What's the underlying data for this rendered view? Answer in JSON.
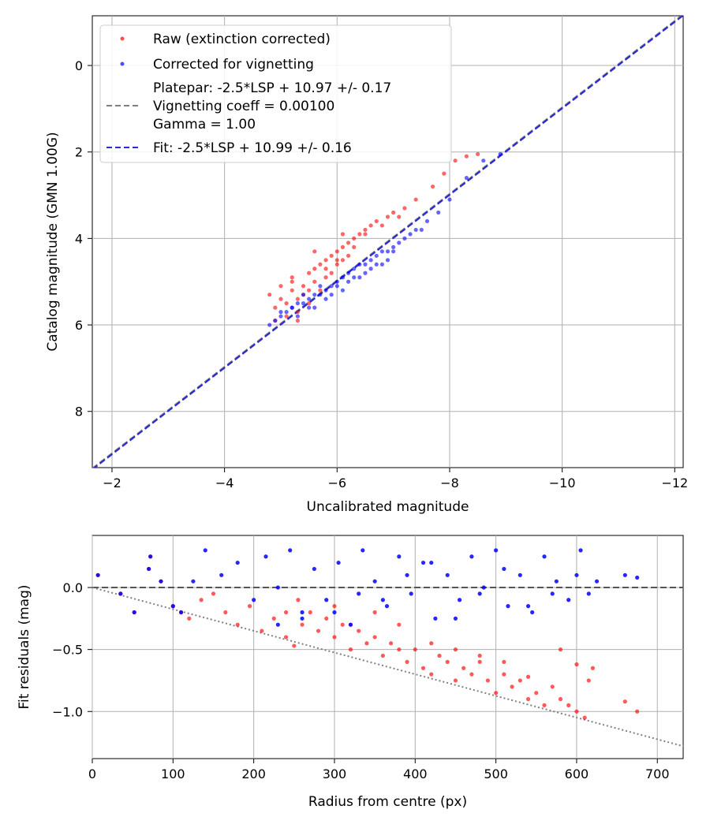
{
  "chart_data": [
    {
      "type": "scatter",
      "xlabel": "Uncalibrated magnitude",
      "ylabel": "Catalog magnitude (GMN 1.00G)",
      "xlim": [
        -1.65,
        -12.15
      ],
      "ylim": [
        9.3,
        -1.15
      ],
      "x_inverted": true,
      "y_inverted": true,
      "xticks": [
        -2,
        -4,
        -6,
        -8,
        -10,
        -12
      ],
      "xtick_labels": [
        "−2",
        "−4",
        "−6",
        "−8",
        "−10",
        "−12"
      ],
      "yticks": [
        0,
        2,
        4,
        6,
        8
      ],
      "ytick_labels": [
        "0",
        "2",
        "4",
        "6",
        "8"
      ],
      "grid": true,
      "legend_position": "top-left",
      "legend": {
        "raw": "Raw (extinction corrected)",
        "corrected": "Corrected for vignetting",
        "platepar_line1": "Platepar: -2.5*LSP + 10.97 +/- 0.17",
        "platepar_line2": "Vignetting coeff = 0.00100",
        "platepar_line3": "Gamma = 1.00",
        "fit": "Fit: -2.5*LSP + 10.99 +/- 0.16"
      },
      "colors": {
        "raw": "#ff0000",
        "corrected": "#0000ff",
        "fit": "#2a2ad6",
        "platepar": "#808080"
      },
      "series": [
        {
          "name": "Raw (extinction corrected)",
          "x": [
            -4.8,
            -4.9,
            -5.0,
            -5.1,
            -5.1,
            -5.2,
            -5.3,
            -5.2,
            -5.4,
            -5.3,
            -5.5,
            -5.4,
            -5.6,
            -5.5,
            -5.7,
            -5.6,
            -5.8,
            -5.7,
            -5.9,
            -5.8,
            -6.0,
            -5.9,
            -6.1,
            -6.0,
            -6.2,
            -6.1,
            -6.3,
            -6.2,
            -6.4,
            -6.5,
            -6.6,
            -6.7,
            -6.9,
            -7.0,
            -7.2,
            -7.4,
            -7.7,
            -7.9,
            -8.1,
            -8.3,
            -8.5,
            -4.9,
            -5.0,
            -5.2,
            -5.3,
            -5.5,
            -5.6,
            -5.8,
            -6.0,
            -6.1,
            -6.3,
            -6.5,
            -6.8,
            -7.1
          ],
          "y": [
            5.3,
            5.6,
            5.1,
            5.5,
            5.8,
            5.2,
            5.4,
            4.9,
            5.1,
            5.7,
            4.8,
            5.3,
            4.7,
            5.5,
            4.6,
            5.0,
            4.5,
            5.2,
            4.4,
            4.9,
            4.3,
            4.8,
            4.2,
            4.6,
            4.1,
            4.5,
            4.0,
            4.4,
            3.9,
            3.8,
            3.7,
            3.6,
            3.5,
            3.4,
            3.3,
            3.1,
            2.8,
            2.5,
            2.2,
            2.1,
            2.05,
            5.9,
            5.4,
            5.0,
            5.9,
            5.2,
            4.3,
            4.7,
            4.5,
            3.9,
            4.2,
            3.9,
            3.7,
            3.5
          ]
        },
        {
          "name": "Corrected for vignetting",
          "x": [
            -4.8,
            -4.9,
            -5.0,
            -5.1,
            -5.2,
            -5.3,
            -5.4,
            -5.5,
            -5.6,
            -5.7,
            -5.8,
            -5.9,
            -6.0,
            -6.1,
            -6.2,
            -6.3,
            -6.4,
            -6.5,
            -6.6,
            -6.7,
            -6.8,
            -6.9,
            -7.0,
            -7.1,
            -7.2,
            -7.3,
            -7.4,
            -7.5,
            -7.6,
            -7.8,
            -8.0,
            -8.3,
            -8.6,
            -8.9,
            -5.0,
            -5.2,
            -5.4,
            -5.6,
            -5.8,
            -6.0,
            -6.2,
            -6.4,
            -6.6,
            -6.8,
            -7.0,
            -5.3,
            -5.5,
            -5.7,
            -5.9,
            -6.1,
            -6.3,
            -6.5,
            -6.7,
            -6.9
          ],
          "y": [
            6.0,
            5.9,
            5.8,
            5.7,
            5.6,
            5.5,
            5.5,
            5.4,
            5.3,
            5.3,
            5.2,
            5.1,
            5.0,
            4.9,
            4.8,
            4.7,
            4.6,
            4.6,
            4.5,
            4.4,
            4.3,
            4.3,
            4.2,
            4.1,
            4.0,
            3.9,
            3.8,
            3.8,
            3.6,
            3.4,
            3.1,
            2.6,
            2.2,
            2.05,
            5.7,
            5.6,
            5.3,
            5.6,
            5.4,
            5.1,
            5.0,
            4.9,
            4.7,
            4.6,
            4.3,
            5.8,
            5.6,
            5.1,
            5.3,
            5.2,
            4.9,
            4.8,
            4.6,
            4.5
          ]
        }
      ],
      "lines": [
        {
          "name": "Platepar: -2.5*LSP + 10.97 +/- 0.17",
          "style": "dashed",
          "slope": 1,
          "intercept": 10.97
        },
        {
          "name": "Fit: -2.5*LSP + 10.99 +/- 0.16",
          "style": "dashed",
          "slope": 1,
          "intercept": 10.99
        }
      ]
    },
    {
      "type": "scatter",
      "xlabel": "Radius from centre (px)",
      "ylabel": "Fit residuals (mag)",
      "xlim": [
        0,
        732
      ],
      "ylim": [
        -1.38,
        0.42
      ],
      "xticks": [
        0,
        100,
        200,
        300,
        400,
        500,
        600,
        700
      ],
      "xtick_labels": [
        "0",
        "100",
        "200",
        "300",
        "400",
        "500",
        "600",
        "700"
      ],
      "yticks": [
        0.0,
        -0.5,
        -1.0
      ],
      "ytick_labels": [
        "0.0",
        "−0.5",
        "−1.0"
      ],
      "grid": true,
      "colors": {
        "raw": "#ff0000",
        "corrected": "#0000ff",
        "zero_line": "#555555",
        "trend": "#808080"
      },
      "series": [
        {
          "name": "Raw (extinction corrected)",
          "x": [
            7,
            35,
            52,
            70,
            72,
            85,
            100,
            110,
            120,
            135,
            150,
            165,
            180,
            195,
            210,
            225,
            240,
            250,
            260,
            270,
            280,
            290,
            300,
            310,
            320,
            330,
            340,
            350,
            360,
            370,
            380,
            390,
            400,
            410,
            420,
            430,
            440,
            450,
            460,
            470,
            480,
            490,
            500,
            510,
            520,
            530,
            540,
            550,
            560,
            570,
            580,
            590,
            600,
            610,
            615,
            620,
            660,
            675,
            240,
            255,
            300,
            320,
            350,
            380,
            420,
            450,
            480,
            510,
            540,
            580,
            600
          ],
          "y": [
            0.1,
            -0.05,
            -0.2,
            0.15,
            0.25,
            0.05,
            -0.15,
            -0.2,
            -0.25,
            -0.1,
            -0.05,
            -0.2,
            -0.3,
            -0.15,
            -0.35,
            -0.25,
            -0.4,
            -0.47,
            -0.3,
            -0.2,
            -0.35,
            -0.25,
            -0.4,
            -0.3,
            -0.5,
            -0.35,
            -0.45,
            -0.4,
            -0.55,
            -0.45,
            -0.5,
            -0.6,
            -0.5,
            -0.65,
            -0.7,
            -0.55,
            -0.6,
            -0.75,
            -0.65,
            -0.7,
            -0.6,
            -0.75,
            -0.85,
            -0.7,
            -0.8,
            -0.75,
            -0.9,
            -0.85,
            -0.95,
            -0.8,
            -0.9,
            -0.95,
            -1.0,
            -1.05,
            -0.75,
            -0.65,
            -0.92,
            -1.0,
            -0.2,
            -0.1,
            -0.15,
            -0.3,
            -0.2,
            -0.3,
            -0.45,
            -0.5,
            -0.55,
            -0.6,
            -0.72,
            -0.5,
            -0.62
          ]
        },
        {
          "name": "Corrected for vignetting",
          "x": [
            7,
            35,
            52,
            70,
            72,
            85,
            100,
            110,
            125,
            140,
            160,
            180,
            200,
            215,
            230,
            245,
            260,
            275,
            290,
            305,
            320,
            335,
            350,
            365,
            380,
            395,
            410,
            425,
            440,
            455,
            470,
            485,
            500,
            515,
            530,
            545,
            560,
            575,
            590,
            605,
            615,
            625,
            660,
            675,
            230,
            260,
            300,
            330,
            360,
            390,
            420,
            450,
            480,
            510,
            540,
            570,
            600
          ],
          "y": [
            0.1,
            -0.05,
            -0.2,
            0.15,
            0.25,
            0.05,
            -0.15,
            -0.2,
            0.05,
            0.3,
            0.1,
            0.2,
            -0.1,
            0.25,
            0.0,
            0.3,
            -0.2,
            0.15,
            -0.1,
            0.2,
            -0.3,
            0.3,
            0.05,
            -0.15,
            0.25,
            -0.05,
            0.2,
            -0.25,
            0.1,
            -0.1,
            0.25,
            0.0,
            0.3,
            -0.15,
            0.1,
            -0.2,
            0.25,
            0.05,
            -0.1,
            0.3,
            -0.05,
            0.05,
            0.1,
            0.08,
            -0.3,
            -0.25,
            -0.2,
            -0.05,
            -0.1,
            0.1,
            0.2,
            -0.25,
            -0.05,
            0.15,
            -0.15,
            -0.05,
            0.1
          ]
        }
      ],
      "lines": [
        {
          "name": "zero residual",
          "style": "dashed",
          "points": [
            [
              0,
              0
            ],
            [
              732,
              0
            ]
          ]
        },
        {
          "name": "vignetting trend",
          "style": "dotted",
          "points": [
            [
              0,
              0
            ],
            [
              732,
              -1.28
            ]
          ]
        }
      ]
    }
  ]
}
